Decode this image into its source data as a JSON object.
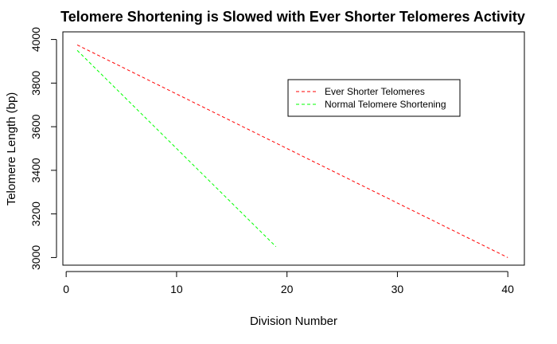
{
  "chart_data": {
    "type": "line",
    "title": "Telomere Shortening is Slowed with Ever Shorter Telomeres Activity",
    "xlabel": "Division Number",
    "ylabel": "Telomere Length (bp)",
    "xlim": [
      -0.3,
      41.5
    ],
    "ylim": [
      2965,
      4035
    ],
    "x_ticks": [
      0,
      10,
      20,
      30,
      40
    ],
    "y_ticks": [
      3000,
      3200,
      3400,
      3600,
      3800,
      4000
    ],
    "legend": {
      "placement": "top-right"
    },
    "grid": false,
    "series": [
      {
        "name": "Ever Shorter Telomeres",
        "color": "#ff0000",
        "line_style": "dashed",
        "points": [
          [
            1,
            3975
          ],
          [
            40,
            3000
          ]
        ]
      },
      {
        "name": "Normal Telomere Shortening",
        "color": "#00ff00",
        "line_style": "dashed",
        "points": [
          [
            1,
            3950
          ],
          [
            19,
            3050
          ]
        ]
      }
    ]
  }
}
